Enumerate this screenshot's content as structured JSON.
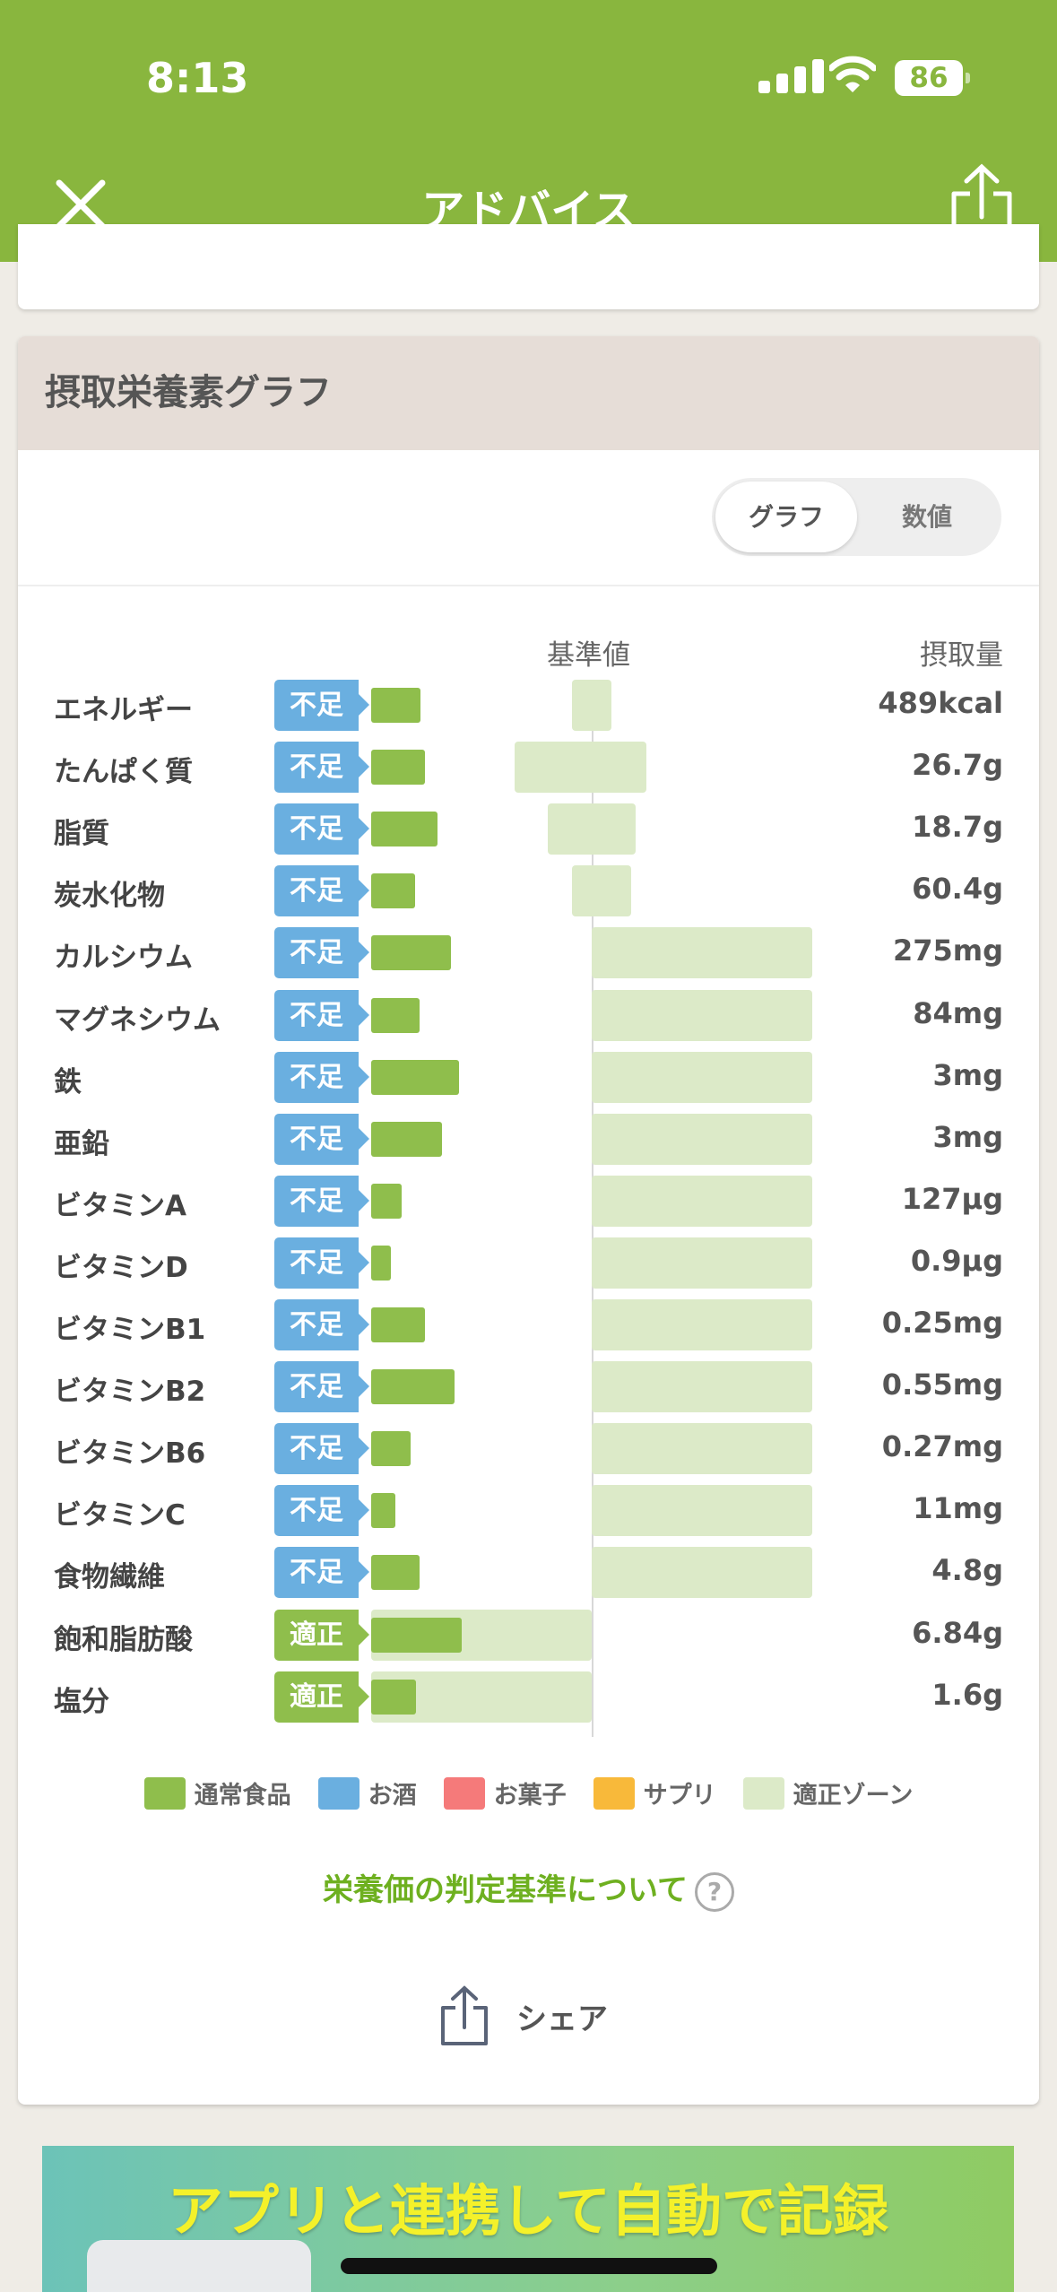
{
  "status_bar": {
    "time": "8:13",
    "battery": "86"
  },
  "header": {
    "title": "アドバイス",
    "close_icon": "close-icon",
    "share_icon": "share-icon"
  },
  "card": {
    "title": "摂取栄養素グラフ",
    "toggle": {
      "options": [
        "グラフ",
        "数値"
      ],
      "selected": "グラフ"
    }
  },
  "colors": {
    "normal_food": "#8fbe4c",
    "alcohol": "#6aafe0",
    "sweets": "#f57a7a",
    "supplement": "#f8b93a",
    "zone": "#dceac8",
    "header": "#89b63e"
  },
  "chart_data": {
    "type": "bar",
    "column_headers": {
      "reference": "基準値",
      "intake": "摂取量"
    },
    "unit": "% of reference (estimated)",
    "rows": [
      {
        "name": "エネルギー",
        "status": "不足",
        "value": 22.5,
        "zone": [
          91,
          109
        ],
        "intake": "489kcal"
      },
      {
        "name": "たんぱく質",
        "status": "不足",
        "value": 24.5,
        "zone": [
          65,
          125
        ],
        "intake": "26.7g"
      },
      {
        "name": "脂質",
        "status": "不足",
        "value": 30,
        "zone": [
          80,
          120
        ],
        "intake": "18.7g"
      },
      {
        "name": "炭水化物",
        "status": "不足",
        "value": 20,
        "zone": [
          91,
          118
        ],
        "intake": "60.4g"
      },
      {
        "name": "カルシウム",
        "status": "不足",
        "value": 36,
        "zone": [
          100,
          200
        ],
        "intake": "275mg"
      },
      {
        "name": "マグネシウム",
        "status": "不足",
        "value": 22,
        "zone": [
          100,
          200
        ],
        "intake": "84mg"
      },
      {
        "name": "鉄",
        "status": "不足",
        "value": 40,
        "zone": [
          100,
          200
        ],
        "intake": "3mg"
      },
      {
        "name": "亜鉛",
        "status": "不足",
        "value": 32,
        "zone": [
          100,
          200
        ],
        "intake": "3mg"
      },
      {
        "name": "ビタミンA",
        "status": "不足",
        "value": 14,
        "zone": [
          100,
          200
        ],
        "intake": "127μg"
      },
      {
        "name": "ビタミンD",
        "status": "不足",
        "value": 9,
        "zone": [
          100,
          200
        ],
        "intake": "0.9μg"
      },
      {
        "name": "ビタミンB1",
        "status": "不足",
        "value": 24.5,
        "zone": [
          100,
          200
        ],
        "intake": "0.25mg"
      },
      {
        "name": "ビタミンB2",
        "status": "不足",
        "value": 38,
        "zone": [
          100,
          200
        ],
        "intake": "0.55mg"
      },
      {
        "name": "ビタミンB6",
        "status": "不足",
        "value": 18,
        "zone": [
          100,
          200
        ],
        "intake": "0.27mg"
      },
      {
        "name": "ビタミンC",
        "status": "不足",
        "value": 11,
        "zone": [
          100,
          200
        ],
        "intake": "11mg"
      },
      {
        "name": "食物繊維",
        "status": "不足",
        "value": 22,
        "zone": [
          100,
          200
        ],
        "intake": "4.8g"
      },
      {
        "name": "飽和脂肪酸",
        "status": "適正",
        "value": 41,
        "zone": [
          0,
          100
        ],
        "intake": "6.84g"
      },
      {
        "name": "塩分",
        "status": "適正",
        "value": 20.5,
        "zone": [
          0,
          100
        ],
        "intake": "1.6g"
      }
    ],
    "status_colors": {
      "不足": "#6aafe0",
      "適正": "#8fbe4c"
    },
    "legend": [
      {
        "label": "通常食品",
        "color": "#8fbe4c"
      },
      {
        "label": "お酒",
        "color": "#6aafe0"
      },
      {
        "label": "お菓子",
        "color": "#f57a7a"
      },
      {
        "label": "サプリ",
        "color": "#f8b93a"
      },
      {
        "label": "適正ゾーン",
        "color": "#dceac8"
      }
    ]
  },
  "links": {
    "criteria": "栄養価の判定基準について",
    "help_icon": "question-icon",
    "share": "シェア"
  },
  "banner": {
    "text": "アプリと連携して自動で記録"
  }
}
